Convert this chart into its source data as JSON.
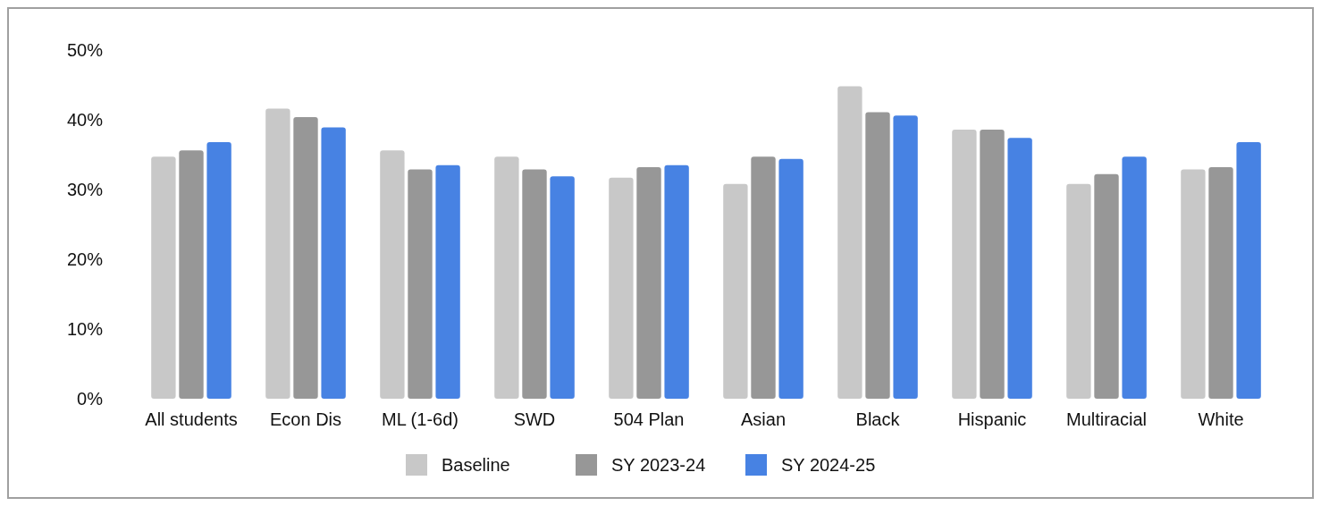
{
  "chart_data": {
    "type": "bar",
    "categories": [
      "All students",
      "Econ Dis",
      "ML (1-6d)",
      "SWD",
      "504 Plan",
      "Asian",
      "Black",
      "Hispanic",
      "Multiracial",
      "White"
    ],
    "series": [
      {
        "name": "Baseline",
        "color": "#c8c8c8",
        "values": [
          34.7,
          41.6,
          35.6,
          34.7,
          31.7,
          30.8,
          44.8,
          38.6,
          30.8,
          32.9
        ]
      },
      {
        "name": "SY 2023-24",
        "color": "#979797",
        "values": [
          35.6,
          40.4,
          32.9,
          32.9,
          33.2,
          34.7,
          41.1,
          38.6,
          32.2,
          33.2
        ]
      },
      {
        "name": "SY 2024-25",
        "color": "#4782e3",
        "values": [
          36.8,
          38.9,
          33.5,
          31.9,
          33.5,
          34.4,
          40.6,
          37.4,
          34.7,
          36.8
        ]
      }
    ],
    "ylim": [
      0,
      50
    ],
    "yticks": [
      {
        "value": 0,
        "label": "0%"
      },
      {
        "value": 10,
        "label": "10%"
      },
      {
        "value": 20,
        "label": "20%"
      },
      {
        "value": 30,
        "label": "30%"
      },
      {
        "value": 40,
        "label": "40%"
      },
      {
        "value": 50,
        "label": "50%"
      }
    ],
    "grid": false,
    "legend": "bottom"
  }
}
